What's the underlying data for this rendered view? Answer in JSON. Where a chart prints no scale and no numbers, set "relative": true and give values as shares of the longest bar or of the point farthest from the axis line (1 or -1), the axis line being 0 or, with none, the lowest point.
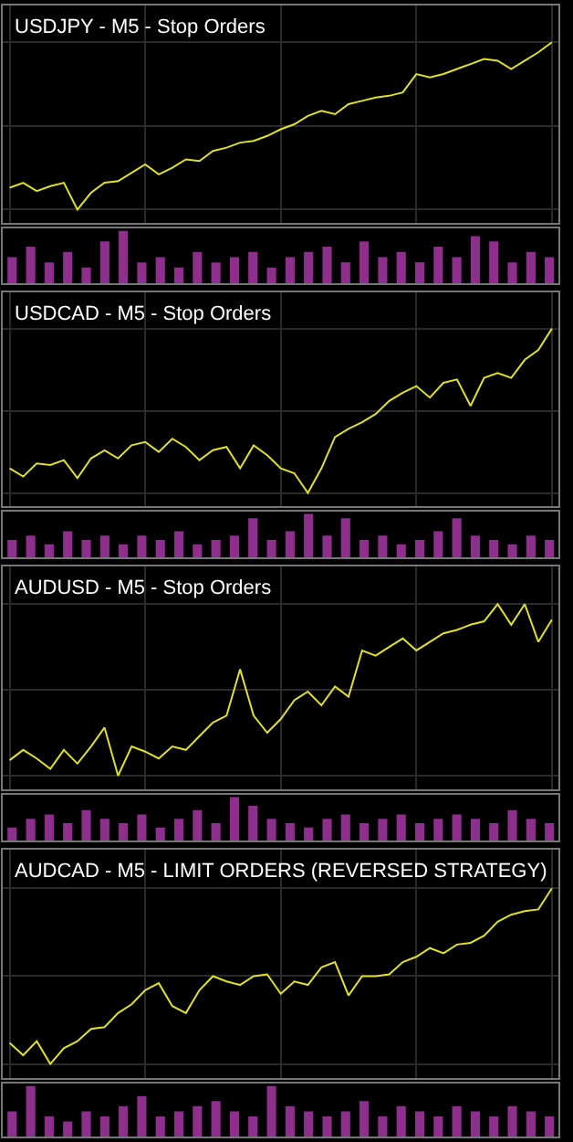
{
  "chart_data": [
    {
      "type": "line",
      "title": "USDJPY - M5 - Stop Orders",
      "relative": true,
      "grid": true,
      "tick_labels": false,
      "categories": [
        null,
        null,
        null,
        null,
        null,
        null,
        null,
        null,
        null,
        null,
        null,
        null,
        null,
        null,
        null,
        null,
        null,
        null,
        null,
        null,
        null,
        null,
        null,
        null,
        null,
        null,
        null,
        null,
        null,
        null,
        null,
        null,
        null,
        null,
        null,
        null,
        null,
        null,
        null,
        null,
        null
      ],
      "series": [
        {
          "color": "#e0e02a",
          "values": [
            0.13,
            0.16,
            0.11,
            0.14,
            0.16,
            0,
            0.1,
            0.16,
            0.17,
            0.22,
            0.27,
            0.21,
            0.25,
            0.3,
            0.29,
            0.35,
            0.37,
            0.4,
            0.41,
            0.44,
            0.48,
            0.51,
            0.56,
            0.59,
            0.57,
            0.63,
            0.65,
            0.67,
            0.68,
            0.7,
            0.81,
            0.79,
            0.81,
            0.84,
            0.87,
            0.9,
            0.89,
            0.84,
            0.89,
            0.94,
            1
          ]
        }
      ]
    },
    {
      "type": "bar",
      "relative": true,
      "tick_labels": false,
      "categories": [
        null,
        null,
        null,
        null,
        null,
        null,
        null,
        null,
        null,
        null,
        null,
        null,
        null,
        null,
        null,
        null,
        null,
        null,
        null,
        null,
        null,
        null,
        null,
        null,
        null,
        null,
        null,
        null,
        null,
        null
      ],
      "series": [
        {
          "color": "#8e2f8e",
          "values": [
            0.5,
            0.7,
            0.4,
            0.6,
            0.3,
            0.8,
            1.0,
            0.4,
            0.5,
            0.3,
            0.6,
            0.4,
            0.5,
            0.6,
            0.3,
            0.5,
            0.6,
            0.7,
            0.4,
            0.8,
            0.5,
            0.6,
            0.4,
            0.7,
            0.5,
            0.9,
            0.8,
            0.4,
            0.6,
            0.5
          ]
        }
      ]
    },
    {
      "type": "line",
      "title": "USDCAD - M5 - Stop Orders",
      "relative": true,
      "grid": true,
      "tick_labels": false,
      "categories": [
        null,
        null,
        null,
        null,
        null,
        null,
        null,
        null,
        null,
        null,
        null,
        null,
        null,
        null,
        null,
        null,
        null,
        null,
        null,
        null,
        null,
        null,
        null,
        null,
        null,
        null,
        null,
        null,
        null,
        null,
        null,
        null,
        null,
        null,
        null,
        null,
        null,
        null,
        null,
        null,
        null
      ],
      "series": [
        {
          "color": "#e0e02a",
          "values": [
            0.15,
            0.1,
            0.18,
            0.17,
            0.2,
            0.09,
            0.21,
            0.26,
            0.21,
            0.29,
            0.31,
            0.25,
            0.33,
            0.28,
            0.2,
            0.26,
            0.28,
            0.15,
            0.29,
            0.23,
            0.15,
            0.12,
            0,
            0.15,
            0.34,
            0.39,
            0.43,
            0.48,
            0.56,
            0.61,
            0.65,
            0.58,
            0.67,
            0.69,
            0.53,
            0.7,
            0.73,
            0.7,
            0.81,
            0.87,
            1
          ]
        }
      ]
    },
    {
      "type": "bar",
      "relative": true,
      "tick_labels": false,
      "categories": [
        null,
        null,
        null,
        null,
        null,
        null,
        null,
        null,
        null,
        null,
        null,
        null,
        null,
        null,
        null,
        null,
        null,
        null,
        null,
        null,
        null,
        null,
        null,
        null,
        null,
        null,
        null,
        null,
        null,
        null
      ],
      "series": [
        {
          "color": "#8e2f8e",
          "values": [
            0.4,
            0.5,
            0.3,
            0.6,
            0.4,
            0.5,
            0.3,
            0.5,
            0.4,
            0.6,
            0.3,
            0.4,
            0.5,
            0.9,
            0.4,
            0.6,
            1.0,
            0.5,
            0.9,
            0.4,
            0.5,
            0.3,
            0.4,
            0.6,
            0.9,
            0.5,
            0.4,
            0.3,
            0.5,
            0.4
          ]
        }
      ]
    },
    {
      "type": "line",
      "title": "AUDUSD - M5 - Stop Orders",
      "relative": true,
      "grid": true,
      "tick_labels": false,
      "categories": [
        null,
        null,
        null,
        null,
        null,
        null,
        null,
        null,
        null,
        null,
        null,
        null,
        null,
        null,
        null,
        null,
        null,
        null,
        null,
        null,
        null,
        null,
        null,
        null,
        null,
        null,
        null,
        null,
        null,
        null,
        null,
        null,
        null,
        null,
        null,
        null,
        null,
        null,
        null,
        null,
        null
      ],
      "series": [
        {
          "color": "#e0e02a",
          "values": [
            0.09,
            0.15,
            0.1,
            0.04,
            0.15,
            0.07,
            0.17,
            0.28,
            0,
            0.17,
            0.14,
            0.1,
            0.17,
            0.15,
            0.23,
            0.31,
            0.35,
            0.62,
            0.35,
            0.25,
            0.33,
            0.44,
            0.49,
            0.41,
            0.52,
            0.46,
            0.73,
            0.7,
            0.75,
            0.8,
            0.73,
            0.78,
            0.83,
            0.85,
            0.88,
            0.9,
            1,
            0.88,
            1,
            0.78,
            0.91
          ]
        }
      ]
    },
    {
      "type": "bar",
      "relative": true,
      "tick_labels": false,
      "categories": [
        null,
        null,
        null,
        null,
        null,
        null,
        null,
        null,
        null,
        null,
        null,
        null,
        null,
        null,
        null,
        null,
        null,
        null,
        null,
        null,
        null,
        null,
        null,
        null,
        null,
        null,
        null,
        null,
        null,
        null
      ],
      "series": [
        {
          "color": "#8e2f8e",
          "values": [
            0.3,
            0.5,
            0.6,
            0.4,
            0.7,
            0.5,
            0.4,
            0.6,
            0.3,
            0.5,
            0.7,
            0.4,
            1.0,
            0.8,
            0.5,
            0.4,
            0.3,
            0.5,
            0.6,
            0.4,
            0.5,
            0.6,
            0.4,
            0.5,
            0.6,
            0.5,
            0.4,
            0.7,
            0.5,
            0.4
          ]
        }
      ]
    },
    {
      "type": "line",
      "title": "AUDCAD - M5 - LIMIT ORDERS (REVERSED STRATEGY)",
      "relative": true,
      "grid": true,
      "tick_labels": false,
      "categories": [
        null,
        null,
        null,
        null,
        null,
        null,
        null,
        null,
        null,
        null,
        null,
        null,
        null,
        null,
        null,
        null,
        null,
        null,
        null,
        null,
        null,
        null,
        null,
        null,
        null,
        null,
        null,
        null,
        null,
        null,
        null,
        null,
        null,
        null,
        null,
        null,
        null,
        null,
        null,
        null,
        null
      ],
      "series": [
        {
          "color": "#e0e02a",
          "values": [
            0.12,
            0.05,
            0.13,
            0,
            0.09,
            0.13,
            0.2,
            0.21,
            0.29,
            0.34,
            0.42,
            0.46,
            0.33,
            0.29,
            0.42,
            0.5,
            0.47,
            0.45,
            0.5,
            0.51,
            0.4,
            0.47,
            0.45,
            0.55,
            0.58,
            0.39,
            0.5,
            0.5,
            0.51,
            0.58,
            0.61,
            0.66,
            0.63,
            0.68,
            0.69,
            0.73,
            0.81,
            0.85,
            0.87,
            0.88,
            1
          ]
        }
      ]
    },
    {
      "type": "bar",
      "relative": true,
      "tick_labels": false,
      "categories": [
        null,
        null,
        null,
        null,
        null,
        null,
        null,
        null,
        null,
        null,
        null,
        null,
        null,
        null,
        null,
        null,
        null,
        null,
        null,
        null,
        null,
        null,
        null,
        null,
        null,
        null,
        null,
        null,
        null,
        null
      ],
      "series": [
        {
          "color": "#8e2f8e",
          "values": [
            0.5,
            1.0,
            0.4,
            0.3,
            0.5,
            0.4,
            0.6,
            0.8,
            0.4,
            0.5,
            0.6,
            0.7,
            0.5,
            0.4,
            1.0,
            0.6,
            0.5,
            0.4,
            0.5,
            0.7,
            0.4,
            0.6,
            0.5,
            0.4,
            0.6,
            0.5,
            0.4,
            0.6,
            0.5,
            0.4
          ]
        }
      ]
    }
  ]
}
